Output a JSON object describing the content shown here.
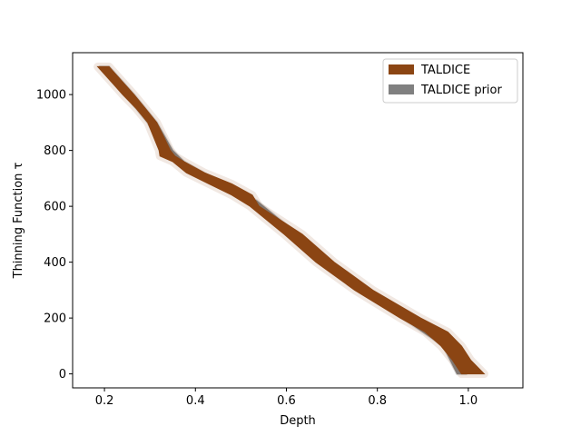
{
  "chart_data": {
    "type": "area",
    "xlabel": "Depth",
    "ylabel": "Thinning Function τ",
    "xlim": [
      0.13,
      1.12
    ],
    "ylim": [
      -50,
      1150
    ],
    "xticks": [
      0.2,
      0.4,
      0.6,
      0.8,
      1.0
    ],
    "xtick_labels": [
      "0.2",
      "0.4",
      "0.6",
      "0.8",
      "1.0"
    ],
    "yticks": [
      0,
      200,
      400,
      600,
      800,
      1000
    ],
    "ytick_labels": [
      "0",
      "200",
      "400",
      "600",
      "800",
      "1000"
    ],
    "grid": false,
    "legend_position": "top-right",
    "series": [
      {
        "name": "TALDICE prior",
        "color": "#808080",
        "y": [
          1100,
          1000,
          900,
          800,
          760,
          700,
          620,
          500,
          400,
          300,
          200,
          100,
          0
        ],
        "left": [
          0.19,
          0.245,
          0.295,
          0.33,
          0.355,
          0.42,
          0.515,
          0.605,
          0.675,
          0.765,
          0.855,
          0.945,
          0.975
        ],
        "right": [
          0.21,
          0.265,
          0.315,
          0.35,
          0.375,
          0.44,
          0.535,
          0.625,
          0.695,
          0.785,
          0.875,
          0.965,
          0.995
        ]
      },
      {
        "name": "TALDICE",
        "color": "#8B4513",
        "y": [
          1100,
          1000,
          950,
          900,
          800,
          780,
          760,
          720,
          680,
          640,
          600,
          500,
          400,
          300,
          200,
          150,
          100,
          50,
          0
        ],
        "left": [
          0.185,
          0.24,
          0.27,
          0.295,
          0.32,
          0.322,
          0.35,
          0.38,
          0.43,
          0.48,
          0.52,
          0.595,
          0.665,
          0.75,
          0.85,
          0.905,
          0.94,
          0.965,
          0.985
        ],
        "right": [
          0.21,
          0.265,
          0.29,
          0.315,
          0.345,
          0.355,
          0.375,
          0.42,
          0.48,
          0.525,
          0.54,
          0.635,
          0.705,
          0.79,
          0.895,
          0.955,
          0.985,
          1.005,
          1.035
        ]
      }
    ]
  }
}
